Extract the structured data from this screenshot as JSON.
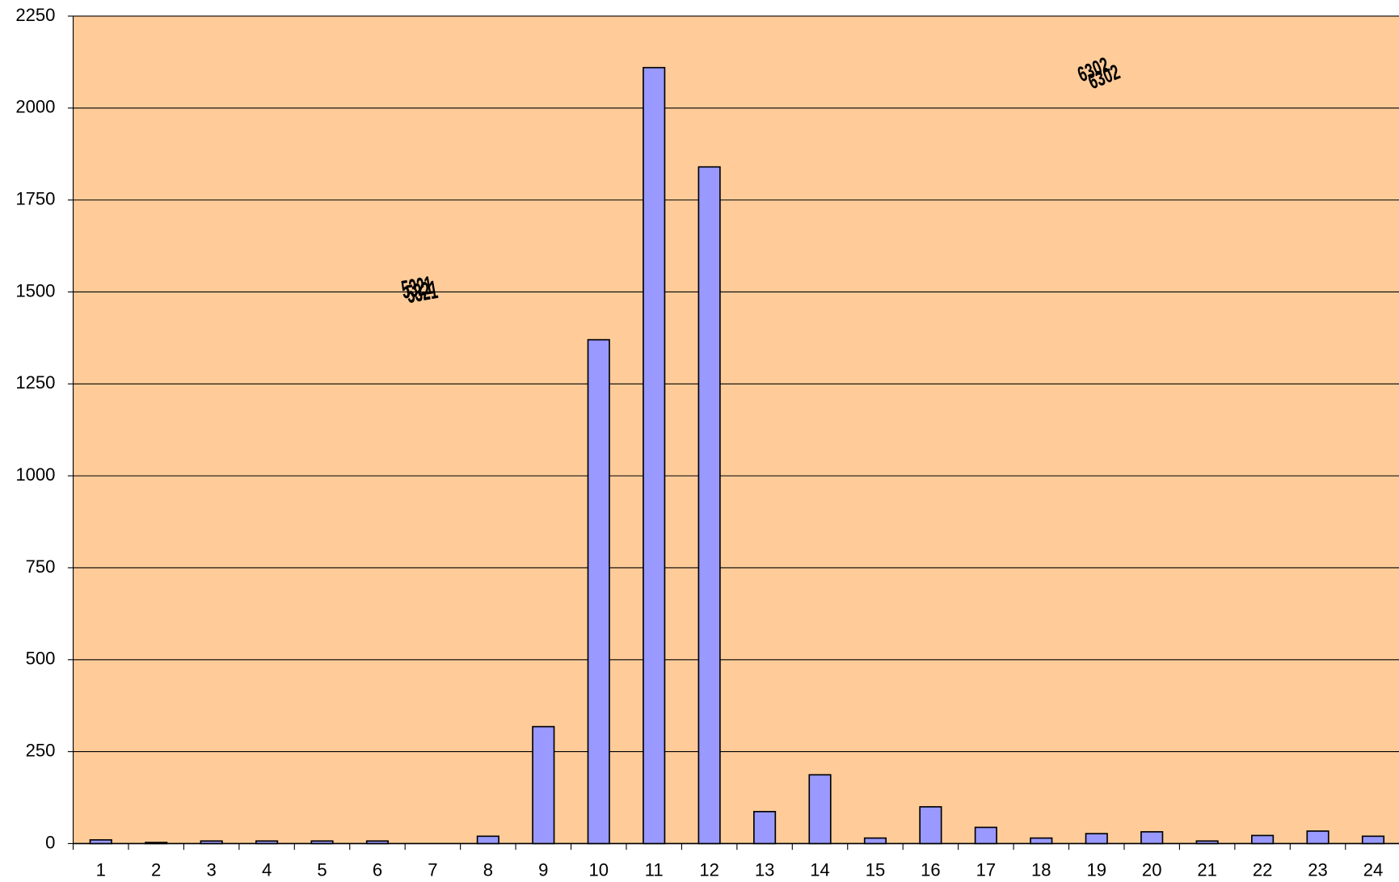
{
  "chart_data": {
    "type": "bar",
    "categories": [
      "1",
      "2",
      "3",
      "4",
      "5",
      "6",
      "7",
      "8",
      "9",
      "10",
      "11",
      "12",
      "13",
      "14",
      "15",
      "16",
      "17",
      "18",
      "19",
      "20",
      "21",
      "22",
      "23",
      "24"
    ],
    "values": [
      10,
      3,
      7,
      7,
      7,
      7,
      0,
      20,
      318,
      1370,
      2110,
      1840,
      87,
      187,
      15,
      100,
      44,
      15,
      27,
      32,
      7,
      22,
      34,
      20
    ],
    "color": "#9999ff",
    "ylim": [
      0,
      2250
    ],
    "yticks": [
      0,
      250,
      500,
      750,
      1000,
      1250,
      1500,
      1750,
      2000,
      2250
    ],
    "grid": true,
    "annotations": [
      "5321",
      "6302"
    ]
  }
}
